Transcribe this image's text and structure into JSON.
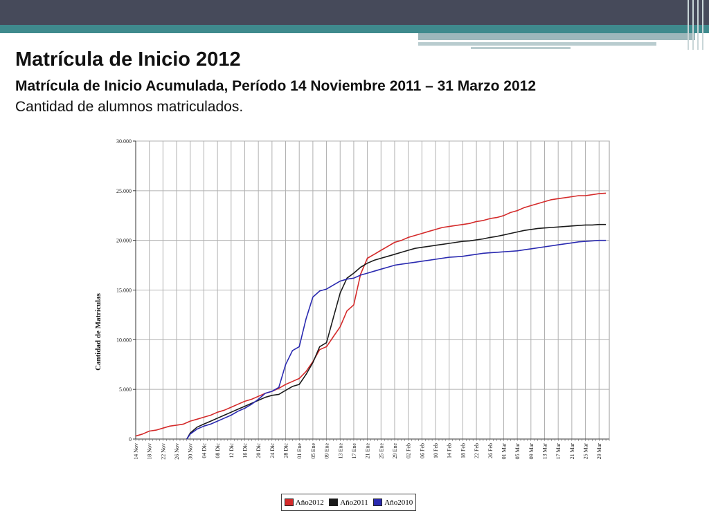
{
  "slide": {
    "title": "Matrícula de Inicio 2012",
    "subtitle": "Matrícula de Inicio Acumulada, Período 14 Noviembre 2011 – 31 Marzo 2012",
    "body": "Cantidad de alumnos matriculados."
  },
  "theme": {
    "topbar": "#464a5a",
    "accent": "#3f8a8d"
  },
  "chart_data": {
    "type": "line",
    "title": "",
    "xlabel": "",
    "ylabel": "Cantidad de Matrículas",
    "ylim": [
      0,
      30000
    ],
    "yticks": [
      0,
      5000,
      10000,
      15000,
      20000,
      25000,
      30000
    ],
    "ytick_labels": [
      "0",
      "5.000",
      "10.000",
      "15.000",
      "20.000",
      "25.000",
      "30.000"
    ],
    "x_start": "14 Nov",
    "x_days": 139,
    "x_label_days": [
      0,
      4,
      8,
      12,
      16,
      20,
      24,
      28,
      32,
      36,
      40,
      44,
      48,
      52,
      56,
      60,
      64,
      68,
      72,
      76,
      80,
      84,
      88,
      92,
      96,
      100,
      104,
      108,
      112,
      116,
      120,
      124,
      128,
      132,
      136
    ],
    "x_tick_labels": [
      "14 Nov",
      "18 Nov",
      "22 Nov",
      "26 Nov",
      "30 Nov",
      "04 Dic",
      "08 Dic",
      "12 Dic",
      "16 Dic",
      "20 Dic",
      "24 Dic",
      "28 Dic",
      "01 Ene",
      "05 Ene",
      "09 Ene",
      "13 Ene",
      "17 Ene",
      "21 Ene",
      "25 Ene",
      "29 Ene",
      "02 Feb",
      "06 Feb",
      "10 Feb",
      "14 Feb",
      "18 Feb",
      "22 Feb",
      "26 Feb",
      "01 Mar",
      "05 Mar",
      "09 Mar",
      "13 Mar",
      "17 Mar",
      "21 Mar",
      "25 Mar",
      "29 Mar"
    ],
    "grid": true,
    "legend_position": "bottom",
    "series": [
      {
        "name": "Año2012",
        "color": "#d42a2a",
        "points": [
          [
            0,
            300
          ],
          [
            2,
            500
          ],
          [
            4,
            800
          ],
          [
            6,
            900
          ],
          [
            8,
            1100
          ],
          [
            10,
            1300
          ],
          [
            12,
            1400
          ],
          [
            14,
            1500
          ],
          [
            16,
            1800
          ],
          [
            18,
            2000
          ],
          [
            20,
            2200
          ],
          [
            22,
            2400
          ],
          [
            24,
            2700
          ],
          [
            26,
            2900
          ],
          [
            28,
            3200
          ],
          [
            30,
            3500
          ],
          [
            32,
            3800
          ],
          [
            34,
            4000
          ],
          [
            36,
            4300
          ],
          [
            38,
            4600
          ],
          [
            40,
            4800
          ],
          [
            42,
            5100
          ],
          [
            44,
            5500
          ],
          [
            46,
            5800
          ],
          [
            48,
            6100
          ],
          [
            50,
            6800
          ],
          [
            52,
            7800
          ],
          [
            54,
            9000
          ],
          [
            56,
            9300
          ],
          [
            58,
            10300
          ],
          [
            60,
            11300
          ],
          [
            62,
            12900
          ],
          [
            64,
            13500
          ],
          [
            66,
            16600
          ],
          [
            68,
            18200
          ],
          [
            70,
            18600
          ],
          [
            72,
            19000
          ],
          [
            74,
            19400
          ],
          [
            76,
            19800
          ],
          [
            78,
            20000
          ],
          [
            80,
            20300
          ],
          [
            82,
            20500
          ],
          [
            84,
            20700
          ],
          [
            86,
            20900
          ],
          [
            88,
            21100
          ],
          [
            90,
            21300
          ],
          [
            92,
            21400
          ],
          [
            94,
            21500
          ],
          [
            96,
            21600
          ],
          [
            98,
            21700
          ],
          [
            100,
            21900
          ],
          [
            102,
            22000
          ],
          [
            104,
            22200
          ],
          [
            106,
            22300
          ],
          [
            108,
            22500
          ],
          [
            110,
            22800
          ],
          [
            112,
            23000
          ],
          [
            114,
            23300
          ],
          [
            116,
            23500
          ],
          [
            118,
            23700
          ],
          [
            120,
            23900
          ],
          [
            122,
            24100
          ],
          [
            124,
            24200
          ],
          [
            126,
            24300
          ],
          [
            128,
            24400
          ],
          [
            130,
            24500
          ],
          [
            132,
            24500
          ],
          [
            134,
            24600
          ],
          [
            136,
            24700
          ],
          [
            138,
            24750
          ]
        ]
      },
      {
        "name": "Año2011",
        "color": "#1a1a1a",
        "points": [
          [
            15,
            0
          ],
          [
            16,
            600
          ],
          [
            18,
            1200
          ],
          [
            20,
            1500
          ],
          [
            22,
            1800
          ],
          [
            24,
            2100
          ],
          [
            26,
            2400
          ],
          [
            28,
            2700
          ],
          [
            30,
            3000
          ],
          [
            32,
            3300
          ],
          [
            34,
            3600
          ],
          [
            36,
            3900
          ],
          [
            38,
            4200
          ],
          [
            40,
            4400
          ],
          [
            42,
            4500
          ],
          [
            44,
            4900
          ],
          [
            46,
            5300
          ],
          [
            48,
            5500
          ],
          [
            50,
            6500
          ],
          [
            52,
            7700
          ],
          [
            54,
            9300
          ],
          [
            56,
            9700
          ],
          [
            58,
            12200
          ],
          [
            60,
            14700
          ],
          [
            62,
            16200
          ],
          [
            64,
            16700
          ],
          [
            66,
            17300
          ],
          [
            68,
            17700
          ],
          [
            70,
            18000
          ],
          [
            72,
            18200
          ],
          [
            74,
            18400
          ],
          [
            76,
            18600
          ],
          [
            78,
            18800
          ],
          [
            80,
            19000
          ],
          [
            82,
            19200
          ],
          [
            84,
            19300
          ],
          [
            86,
            19400
          ],
          [
            88,
            19500
          ],
          [
            90,
            19600
          ],
          [
            92,
            19700
          ],
          [
            94,
            19800
          ],
          [
            96,
            19900
          ],
          [
            98,
            19950
          ],
          [
            100,
            20050
          ],
          [
            102,
            20150
          ],
          [
            104,
            20300
          ],
          [
            106,
            20400
          ],
          [
            108,
            20550
          ],
          [
            110,
            20700
          ],
          [
            112,
            20850
          ],
          [
            114,
            21000
          ],
          [
            116,
            21100
          ],
          [
            118,
            21200
          ],
          [
            120,
            21250
          ],
          [
            122,
            21300
          ],
          [
            124,
            21350
          ],
          [
            126,
            21400
          ],
          [
            128,
            21450
          ],
          [
            130,
            21500
          ],
          [
            132,
            21550
          ],
          [
            134,
            21550
          ],
          [
            136,
            21600
          ],
          [
            138,
            21600
          ]
        ]
      },
      {
        "name": "Año2010",
        "color": "#2a2ab0",
        "points": [
          [
            15,
            0
          ],
          [
            16,
            500
          ],
          [
            18,
            1000
          ],
          [
            20,
            1300
          ],
          [
            22,
            1500
          ],
          [
            24,
            1800
          ],
          [
            26,
            2100
          ],
          [
            28,
            2400
          ],
          [
            30,
            2800
          ],
          [
            32,
            3100
          ],
          [
            34,
            3500
          ],
          [
            36,
            4000
          ],
          [
            38,
            4600
          ],
          [
            40,
            4800
          ],
          [
            42,
            5200
          ],
          [
            44,
            7500
          ],
          [
            46,
            8900
          ],
          [
            48,
            9300
          ],
          [
            50,
            12100
          ],
          [
            52,
            14300
          ],
          [
            54,
            14900
          ],
          [
            56,
            15100
          ],
          [
            58,
            15500
          ],
          [
            60,
            15900
          ],
          [
            62,
            16100
          ],
          [
            64,
            16200
          ],
          [
            66,
            16500
          ],
          [
            68,
            16700
          ],
          [
            70,
            16900
          ],
          [
            72,
            17100
          ],
          [
            74,
            17300
          ],
          [
            76,
            17500
          ],
          [
            78,
            17600
          ],
          [
            80,
            17700
          ],
          [
            82,
            17800
          ],
          [
            84,
            17900
          ],
          [
            86,
            18000
          ],
          [
            88,
            18100
          ],
          [
            90,
            18200
          ],
          [
            92,
            18300
          ],
          [
            94,
            18350
          ],
          [
            96,
            18400
          ],
          [
            98,
            18500
          ],
          [
            100,
            18600
          ],
          [
            102,
            18700
          ],
          [
            104,
            18750
          ],
          [
            106,
            18800
          ],
          [
            108,
            18850
          ],
          [
            110,
            18900
          ],
          [
            112,
            18950
          ],
          [
            114,
            19050
          ],
          [
            116,
            19150
          ],
          [
            118,
            19250
          ],
          [
            120,
            19350
          ],
          [
            122,
            19450
          ],
          [
            124,
            19550
          ],
          [
            126,
            19650
          ],
          [
            128,
            19750
          ],
          [
            130,
            19850
          ],
          [
            132,
            19900
          ],
          [
            134,
            19950
          ],
          [
            136,
            20000
          ],
          [
            138,
            20000
          ]
        ]
      }
    ]
  }
}
